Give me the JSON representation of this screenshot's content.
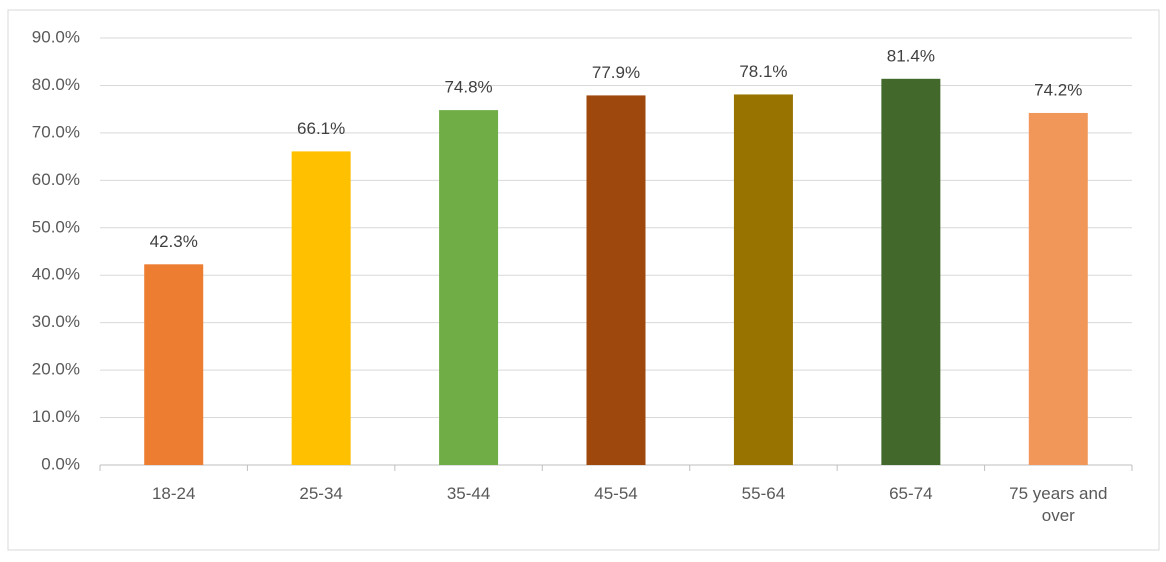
{
  "chart_data": {
    "type": "bar",
    "categories": [
      "18-24",
      "25-34",
      "35-44",
      "45-54",
      "55-64",
      "65-74",
      "75 years and over"
    ],
    "values": [
      42.3,
      66.1,
      74.8,
      77.9,
      78.1,
      81.4,
      74.2
    ],
    "value_labels": [
      "42.3%",
      "66.1%",
      "74.8%",
      "77.9%",
      "78.1%",
      "81.4%",
      "74.2%"
    ],
    "colors": [
      "#ed7d31",
      "#ffc000",
      "#70ad47",
      "#9e480e",
      "#997300",
      "#43682b",
      "#f1975a"
    ],
    "ylim": [
      0,
      90
    ],
    "yticks": [
      {
        "value": 0,
        "label": "0.0%"
      },
      {
        "value": 10,
        "label": "10.0%"
      },
      {
        "value": 20,
        "label": "20.0%"
      },
      {
        "value": 30,
        "label": "30.0%"
      },
      {
        "value": 40,
        "label": "40.0%"
      },
      {
        "value": 50,
        "label": "50.0%"
      },
      {
        "value": 60,
        "label": "60.0%"
      },
      {
        "value": 70,
        "label": "70.0%"
      },
      {
        "value": 80,
        "label": "80.0%"
      },
      {
        "value": 90,
        "label": "90.0%"
      }
    ],
    "grid": true
  }
}
